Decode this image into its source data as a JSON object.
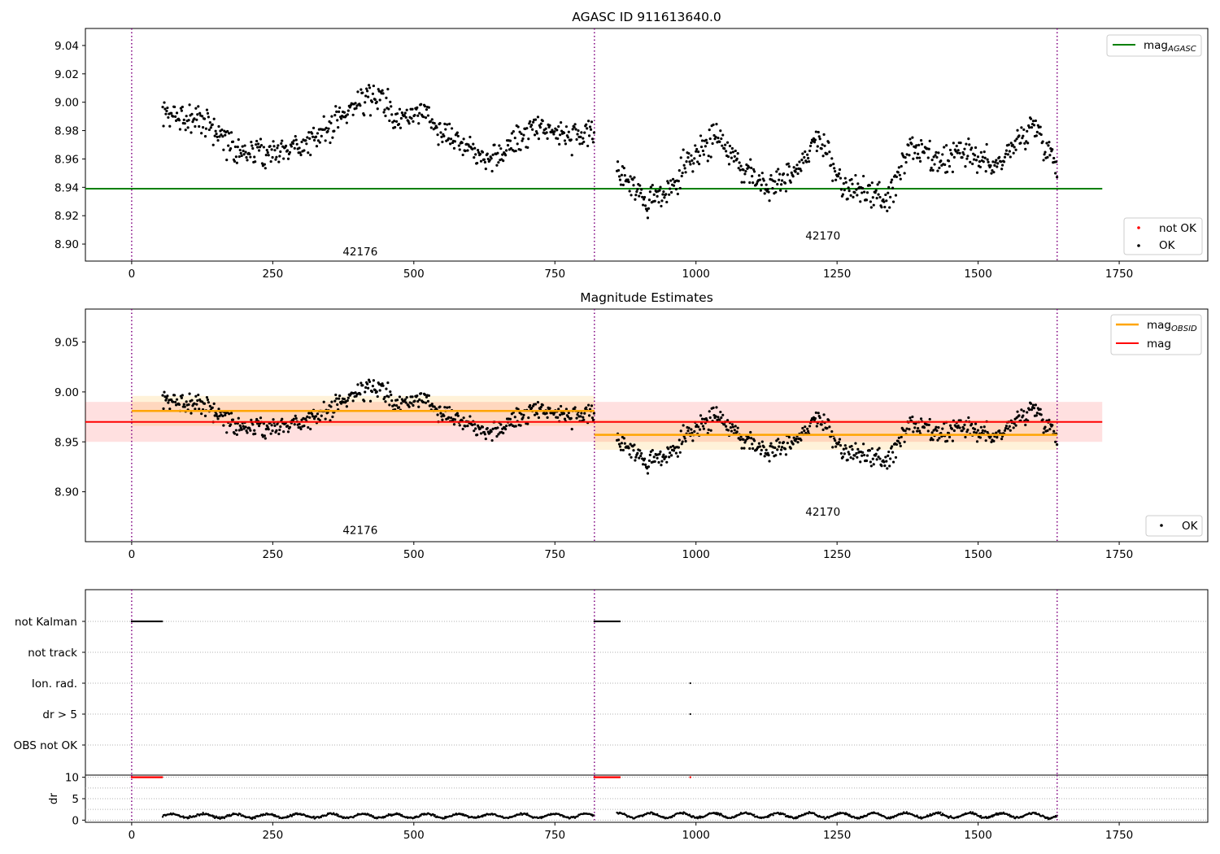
{
  "chart_data": [
    {
      "type": "scatter",
      "title": "AGASC ID 911613640.0",
      "xlabel": "",
      "ylabel": "",
      "xlim": [
        -82,
        1907
      ],
      "ylim": [
        8.888,
        9.052
      ],
      "xticks": [
        0,
        250,
        500,
        750,
        1000,
        1250,
        1500,
        1750
      ],
      "xtick_labels": [
        "0",
        "250",
        "500",
        "750",
        "1000",
        "1250",
        "1500",
        "1750"
      ],
      "yticks": [
        8.9,
        8.92,
        8.94,
        8.96,
        8.98,
        9.0,
        9.02,
        9.04
      ],
      "ytick_labels": [
        "8.90",
        "8.92",
        "8.94",
        "8.96",
        "8.98",
        "9.00",
        "9.02",
        "9.04"
      ],
      "grid": false,
      "obs_boundaries": [
        0,
        820,
        1640
      ],
      "observation_labels": [
        {
          "text": "42176",
          "x": 410,
          "y": 8.895
        },
        {
          "text": "42170",
          "x": 1230,
          "y": 8.906
        }
      ],
      "hlines": [
        {
          "name": "mag_AGASC",
          "y": 8.939,
          "xmin": -82,
          "xmax": 1720,
          "color": "#008000"
        }
      ],
      "legend_upper": {
        "placement": "upper-right",
        "entries": [
          {
            "label": "mag",
            "sub": "AGASC",
            "color": "#008000"
          }
        ]
      },
      "legend_lower": {
        "placement": "lower-right",
        "entries": [
          {
            "label": "not OK",
            "color": "#ff0000"
          },
          {
            "label": "OK",
            "color": "#000000"
          }
        ]
      },
      "series": [
        {
          "name": "not OK",
          "points": []
        },
        {
          "name": "OK",
          "color": "#000000",
          "segments": [
            {
              "x_start": 55,
              "x_end": 820,
              "anchors": [
                [
                  55,
                  8.99
                ],
                [
                  120,
                  8.99
                ],
                [
                  190,
                  8.965
                ],
                [
                  260,
                  8.965
                ],
                [
                  330,
                  8.975
                ],
                [
                  400,
                  9.0
                ],
                [
                  440,
                  9.005
                ],
                [
                  470,
                  8.985
                ],
                [
                  510,
                  8.995
                ],
                [
                  570,
                  8.975
                ],
                [
                  640,
                  8.96
                ],
                [
                  720,
                  8.985
                ],
                [
                  780,
                  8.975
                ],
                [
                  820,
                  8.975
                ]
              ],
              "noise": 0.009
            },
            {
              "x_start": 860,
              "x_end": 1640,
              "anchors": [
                [
                  860,
                  8.955
                ],
                [
                  910,
                  8.93
                ],
                [
                  950,
                  8.935
                ],
                [
                  1000,
                  8.965
                ],
                [
                  1040,
                  8.975
                ],
                [
                  1080,
                  8.955
                ],
                [
                  1130,
                  8.94
                ],
                [
                  1180,
                  8.955
                ],
                [
                  1220,
                  8.975
                ],
                [
                  1260,
                  8.94
                ],
                [
                  1310,
                  8.935
                ],
                [
                  1340,
                  8.93
                ],
                [
                  1380,
                  8.97
                ],
                [
                  1430,
                  8.955
                ],
                [
                  1470,
                  8.965
                ],
                [
                  1530,
                  8.955
                ],
                [
                  1600,
                  8.985
                ],
                [
                  1640,
                  8.955
                ]
              ],
              "noise": 0.009
            }
          ]
        }
      ]
    },
    {
      "type": "scatter",
      "title": "Magnitude Estimates",
      "xlabel": "",
      "ylabel": "",
      "xlim": [
        -82,
        1907
      ],
      "ylim": [
        8.85,
        9.083
      ],
      "xticks": [
        0,
        250,
        500,
        750,
        1000,
        1250,
        1500,
        1750
      ],
      "xtick_labels": [
        "0",
        "250",
        "500",
        "750",
        "1000",
        "1250",
        "1500",
        "1750"
      ],
      "yticks": [
        8.9,
        8.95,
        9.0,
        9.05
      ],
      "ytick_labels": [
        "8.90",
        "8.95",
        "9.00",
        "9.05"
      ],
      "grid": false,
      "obs_boundaries": [
        0,
        820,
        1640
      ],
      "observation_labels": [
        {
          "text": "42176",
          "x": 410,
          "y": 8.862
        },
        {
          "text": "42170",
          "x": 1230,
          "y": 8.88
        }
      ],
      "mag": {
        "value": 8.97,
        "low": 8.95,
        "high": 8.99,
        "xmin": -82,
        "xmax": 1720,
        "color": "#ff0000"
      },
      "mag_obsid": [
        {
          "x_start": 0,
          "x_end": 820,
          "value": 8.981,
          "low": 8.966,
          "high": 8.996
        },
        {
          "x_start": 820,
          "x_end": 1640,
          "value": 8.957,
          "low": 8.942,
          "high": 8.972
        }
      ],
      "legend_upper": {
        "placement": "upper-right",
        "entries": [
          {
            "label": "mag",
            "sub": "OBSID",
            "color": "#ffa500"
          },
          {
            "label": "mag",
            "sub": "",
            "color": "#ff0000"
          }
        ]
      },
      "legend_lower": {
        "placement": "lower-right",
        "entries": [
          {
            "label": "OK",
            "color": "#000000"
          }
        ]
      }
    },
    {
      "type": "scatter",
      "title": "",
      "xlim": [
        -82,
        1907
      ],
      "flag_rows": [
        "not Kalman",
        "not track",
        "Ion. rad.",
        "dr > 5",
        "OBS not OK"
      ],
      "flags": [
        {
          "row": "not Kalman",
          "ranges": [
            [
              0,
              55
            ],
            [
              820,
              865
            ]
          ]
        },
        {
          "row": "Ion. rad.",
          "points": [
            990
          ]
        },
        {
          "row": "dr > 5",
          "points": [
            990
          ]
        }
      ],
      "obs_boundaries": [
        0,
        820,
        1640
      ]
    },
    {
      "type": "scatter",
      "title": "",
      "xlabel": "",
      "ylabel": "dr",
      "xlim": [
        -82,
        1907
      ],
      "ylim": [
        -0.5,
        10.5
      ],
      "xticks": [
        0,
        250,
        500,
        750,
        1000,
        1250,
        1500,
        1750
      ],
      "xtick_labels": [
        "0",
        "250",
        "500",
        "750",
        "1000",
        "1250",
        "1500",
        "1750"
      ],
      "yticks": [
        0,
        5,
        10
      ],
      "ytick_labels": [
        "0",
        "5",
        "10"
      ],
      "clipped_points": {
        "value": 10,
        "color": "#ff0000",
        "ranges": [
          [
            0,
            55
          ],
          [
            820,
            865
          ]
        ],
        "points": [
          990
        ]
      },
      "dr_segments": [
        {
          "x_start": 55,
          "x_end": 820,
          "mean": 1.0,
          "noise": 0.45
        },
        {
          "x_start": 860,
          "x_end": 1640,
          "mean": 1.1,
          "noise": 0.55
        }
      ],
      "obs_boundaries": [
        0,
        820,
        1640
      ]
    }
  ]
}
